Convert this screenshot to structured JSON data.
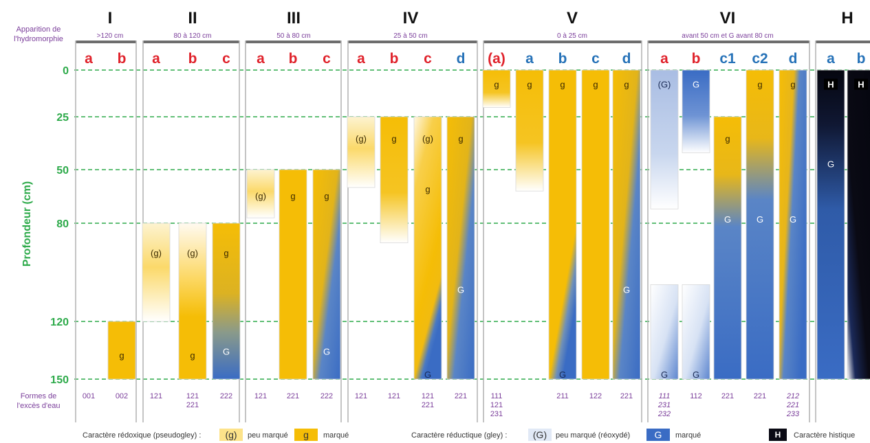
{
  "row_labels": {
    "apparition": [
      "Apparition de",
      "l'hydromorphie"
    ],
    "ylabel": "Profondeur (cm)",
    "formes": [
      "Formes de",
      "l'excès d'eau"
    ]
  },
  "depth_ticks": [
    "0",
    "25",
    "50",
    "80",
    "120",
    "150"
  ],
  "groups": [
    {
      "numeral": "I",
      "range": ">120 cm"
    },
    {
      "numeral": "II",
      "range": "80 à 120 cm"
    },
    {
      "numeral": "III",
      "range": "50 à 80 cm"
    },
    {
      "numeral": "IV",
      "range": "25 à 50 cm"
    },
    {
      "numeral": "V",
      "range": "0 à 25 cm"
    },
    {
      "numeral": "VI",
      "range": "avant 50 cm et G avant 80 cm"
    },
    {
      "numeral": "H",
      "range": ""
    }
  ],
  "columns": [
    {
      "label": "a",
      "color": "red",
      "forms": [
        "001"
      ],
      "bars": []
    },
    {
      "label": "b",
      "color": "red",
      "forms": [
        "002"
      ],
      "bars": [
        {
          "type": "g-strong",
          "top": 120,
          "bottom": 150,
          "marks": [
            {
              "t": "g",
              "d": 135
            }
          ]
        }
      ]
    },
    {
      "label": "a",
      "color": "red",
      "forms": [
        "121"
      ],
      "bars": [
        {
          "type": "g-weak-fade",
          "top": 80,
          "bottom": 120,
          "marks": [
            {
              "t": "(g)",
              "d": 90
            }
          ]
        }
      ]
    },
    {
      "label": "b",
      "color": "red",
      "forms": [
        "121",
        "221"
      ],
      "bars": [
        {
          "type": "g-weak-to-strong",
          "top": 80,
          "bottom": 150,
          "marks": [
            {
              "t": "(g)",
              "d": 90
            },
            {
              "t": "g",
              "d": 135
            }
          ]
        }
      ]
    },
    {
      "label": "c",
      "color": "red",
      "forms": [
        "222"
      ],
      "bars": [
        {
          "type": "g-to-G",
          "top": 80,
          "bottom": 150,
          "marks": [
            {
              "t": "g",
              "d": 90
            },
            {
              "t": "G",
              "d": 133
            }
          ]
        }
      ]
    },
    {
      "label": "a",
      "color": "red",
      "forms": [
        "121"
      ],
      "bars": [
        {
          "type": "g-weak-fade",
          "top": 50,
          "bottom": 77,
          "marks": [
            {
              "t": "(g)",
              "d": 62
            }
          ]
        }
      ]
    },
    {
      "label": "b",
      "color": "red",
      "forms": [
        "221"
      ],
      "bars": [
        {
          "type": "g-strong",
          "top": 50,
          "bottom": 150,
          "marks": [
            {
              "t": "g",
              "d": 62
            }
          ]
        }
      ]
    },
    {
      "label": "c",
      "color": "red",
      "forms": [
        "222"
      ],
      "bars": [
        {
          "type": "g-to-G-diag",
          "top": 50,
          "bottom": 150,
          "marks": [
            {
              "t": "g",
              "d": 62
            },
            {
              "t": "G",
              "d": 133
            }
          ]
        }
      ]
    },
    {
      "label": "a",
      "color": "red",
      "forms": [
        "121"
      ],
      "bars": [
        {
          "type": "g-weak-fade",
          "top": 25,
          "bottom": 60,
          "marks": [
            {
              "t": "(g)",
              "d": 33
            }
          ]
        }
      ]
    },
    {
      "label": "b",
      "color": "red",
      "forms": [
        "121"
      ],
      "bars": [
        {
          "type": "g-strong-fade",
          "top": 25,
          "bottom": 88,
          "marks": [
            {
              "t": "g",
              "d": 33
            }
          ]
        }
      ]
    },
    {
      "label": "c",
      "color": "red",
      "forms": [
        "121",
        "221"
      ],
      "bars": [
        {
          "type": "g-weak-to-strong-G",
          "top": 25,
          "bottom": 150,
          "marks": [
            {
              "t": "(g)",
              "d": 33
            },
            {
              "t": "g",
              "d": 58
            },
            {
              "t": "G",
              "d": 145
            }
          ]
        }
      ]
    },
    {
      "label": "d",
      "color": "blue",
      "forms": [
        "221"
      ],
      "bars": [
        {
          "type": "g-to-G-diag",
          "top": 25,
          "bottom": 150,
          "marks": [
            {
              "t": "g",
              "d": 33
            },
            {
              "t": "G",
              "d": 105
            }
          ]
        }
      ]
    },
    {
      "label": "(a)",
      "color": "red",
      "forms": [
        "111",
        "121",
        "231"
      ],
      "bars": [
        {
          "type": "g-strong-fade",
          "top": 0,
          "bottom": 20,
          "marks": [
            {
              "t": "g",
              "d": 5
            }
          ]
        }
      ]
    },
    {
      "label": "a",
      "color": "blue",
      "forms": [],
      "bars": [
        {
          "type": "g-strong-fade",
          "top": 0,
          "bottom": 62,
          "marks": [
            {
              "t": "g",
              "d": 5
            }
          ]
        }
      ]
    },
    {
      "label": "b",
      "color": "blue",
      "forms": [
        "211"
      ],
      "bars": [
        {
          "type": "g-to-G-corner",
          "top": 0,
          "bottom": 150,
          "marks": [
            {
              "t": "g",
              "d": 5
            },
            {
              "t": "G",
              "d": 145
            }
          ]
        }
      ]
    },
    {
      "label": "c",
      "color": "blue",
      "forms": [
        "122"
      ],
      "bars": [
        {
          "type": "g-strong",
          "top": 0,
          "bottom": 150,
          "marks": [
            {
              "t": "g",
              "d": 5
            }
          ]
        }
      ]
    },
    {
      "label": "d",
      "color": "blue",
      "forms": [
        "221"
      ],
      "bars": [
        {
          "type": "g-to-G-diag",
          "top": 0,
          "bottom": 150,
          "marks": [
            {
              "t": "g",
              "d": 5
            },
            {
              "t": "G",
              "d": 105
            }
          ]
        }
      ]
    },
    {
      "label": "a",
      "color": "red",
      "forms": [
        "111",
        "231",
        "232"
      ],
      "italic": true,
      "bars": [
        {
          "type": "G-weak-fade",
          "top": 0,
          "bottom": 72,
          "marks": [
            {
              "t": "(G)",
              "d": 5
            }
          ]
        },
        {
          "type": "G-weak-up",
          "top": 105,
          "bottom": 150,
          "marks": [
            {
              "t": "G",
              "d": 145
            }
          ]
        }
      ]
    },
    {
      "label": "b",
      "color": "red",
      "forms": [
        "112"
      ],
      "bars": [
        {
          "type": "G-strong-fade",
          "top": 0,
          "bottom": 42,
          "marks": [
            {
              "t": "G",
              "d": 5
            }
          ]
        },
        {
          "type": "G-weak-up",
          "top": 105,
          "bottom": 150,
          "marks": [
            {
              "t": "G",
              "d": 145
            }
          ]
        }
      ]
    },
    {
      "label": "c1",
      "color": "blue",
      "forms": [
        "221"
      ],
      "bars": [
        {
          "type": "g-top-G",
          "top": 25,
          "bottom": 150,
          "marks": [
            {
              "t": "g",
              "d": 33
            },
            {
              "t": "G",
              "d": 75
            }
          ]
        }
      ]
    },
    {
      "label": "c2",
      "color": "blue",
      "forms": [
        "221"
      ],
      "bars": [
        {
          "type": "g-top-G",
          "top": 0,
          "bottom": 150,
          "marks": [
            {
              "t": "g",
              "d": 5
            },
            {
              "t": "G",
              "d": 75
            }
          ]
        }
      ]
    },
    {
      "label": "d",
      "color": "blue",
      "forms": [
        "212",
        "221",
        "233"
      ],
      "italic": true,
      "bars": [
        {
          "type": "g-to-G-corner-top",
          "top": 0,
          "bottom": 150,
          "marks": [
            {
              "t": "g",
              "d": 5
            },
            {
              "t": "G",
              "d": 75
            }
          ]
        }
      ]
    },
    {
      "label": "a",
      "color": "blue",
      "forms": [],
      "bars": [
        {
          "type": "H-to-G",
          "top": 0,
          "bottom": 150,
          "marks": [
            {
              "t": "H",
              "d": 5
            },
            {
              "t": "G",
              "d": 45
            }
          ]
        }
      ]
    },
    {
      "label": "b",
      "color": "blue",
      "forms": [],
      "bars": [
        {
          "type": "H-diag",
          "top": 0,
          "bottom": 150,
          "marks": [
            {
              "t": "H",
              "d": 5
            }
          ]
        }
      ]
    }
  ],
  "legend": {
    "redox_label": "Caractère rédoxique (pseudogley) :",
    "redox_weak_sym": "(g)",
    "redox_weak_text": "peu marqué",
    "redox_strong_sym": "g",
    "redox_strong_text": "marqué",
    "reduc_label": "Caractère réductique (gley) :",
    "reduc_weak_sym": "(G)",
    "reduc_weak_text": "peu marqué (réoxydé)",
    "reduc_strong_sym": "G",
    "reduc_strong_text": "marqué",
    "hist_sym": "H",
    "hist_text": "Caractère histique"
  },
  "colors": {
    "green": "#2daa4a",
    "purple": "#7a3d9a",
    "red": "#e0222b",
    "blue": "#2672b8",
    "yellow": "#f5bd06",
    "gblue": "#3a6cc4",
    "black": "#0a0a14"
  }
}
